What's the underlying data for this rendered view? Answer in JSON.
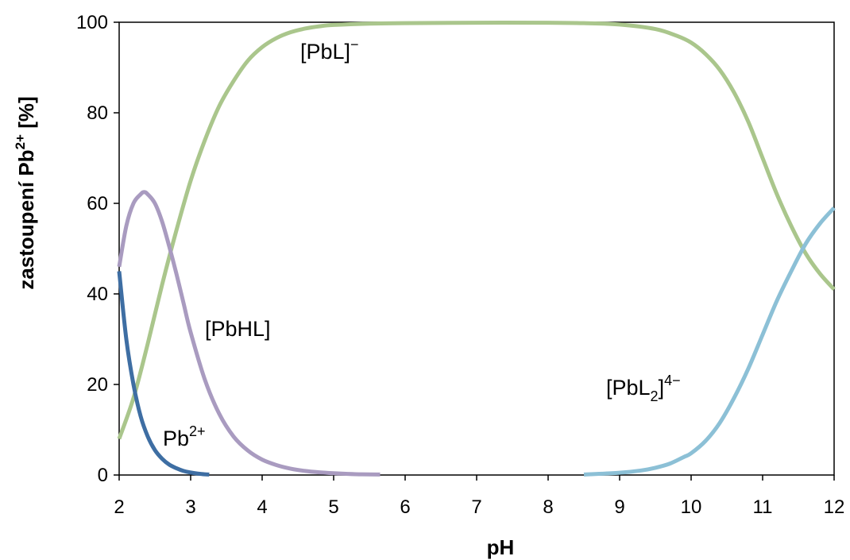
{
  "chart_data": {
    "type": "line",
    "title": "",
    "xlabel": "pH",
    "ylabel_main": "zastoupení Pb",
    "ylabel_sup": "2+",
    "ylabel_unit": " [%]",
    "xlim": [
      2,
      12
    ],
    "ylim": [
      0,
      100
    ],
    "xticks": [
      "2",
      "3",
      "4",
      "5",
      "6",
      "7",
      "8",
      "9",
      "10",
      "11",
      "12"
    ],
    "yticks": [
      "0",
      "20",
      "40",
      "60",
      "80",
      "100"
    ],
    "grid": false,
    "legend": "none",
    "series": [
      {
        "name": "Pb2+",
        "label_main": "Pb",
        "label_sup": "2+",
        "color": "#3e6ea3",
        "x": [
          2.0,
          2.1,
          2.2,
          2.3,
          2.4,
          2.5,
          2.6,
          2.7,
          2.8,
          2.9,
          3.0,
          3.1,
          3.2,
          3.26
        ],
        "y": [
          45,
          30,
          20,
          13,
          8.5,
          5.5,
          3.6,
          2.3,
          1.5,
          0.9,
          0.55,
          0.3,
          0.15,
          0.1
        ]
      },
      {
        "name": "[PbHL]",
        "label_main": "[PbHL]",
        "color": "#a99bc0",
        "x": [
          2.0,
          2.1,
          2.2,
          2.3,
          2.35,
          2.4,
          2.5,
          2.6,
          2.7,
          2.8,
          2.9,
          3.0,
          3.2,
          3.4,
          3.6,
          3.8,
          4.0,
          4.2,
          4.4,
          4.6,
          4.8,
          5.0,
          5.2,
          5.4,
          5.65
        ],
        "y": [
          46,
          55,
          60,
          62,
          62.5,
          62,
          60,
          56,
          50.5,
          44.5,
          38,
          31.5,
          21,
          13.5,
          8.5,
          5.4,
          3.4,
          2.2,
          1.4,
          0.9,
          0.6,
          0.4,
          0.25,
          0.15,
          0.1
        ]
      },
      {
        "name": "[PbL]−",
        "label_main": "[PbL]",
        "label_sup": "−",
        "color": "#aac68c",
        "x": [
          2.0,
          2.2,
          2.4,
          2.6,
          2.8,
          3.0,
          3.2,
          3.4,
          3.6,
          3.8,
          4.0,
          4.2,
          4.4,
          4.6,
          4.8,
          5.0,
          5.5,
          6.0,
          7.0,
          8.0,
          8.5,
          9.0,
          9.5,
          9.8,
          10.0,
          10.2,
          10.4,
          10.6,
          10.8,
          11.0,
          11.2,
          11.4,
          11.6,
          11.8,
          12.0
        ],
        "y": [
          8,
          17,
          29,
          42,
          54,
          65,
          74,
          81.5,
          87,
          91.5,
          94.5,
          96.5,
          97.8,
          98.6,
          99.1,
          99.4,
          99.7,
          99.8,
          99.9,
          99.9,
          99.8,
          99.5,
          98.5,
          97,
          95.5,
          93,
          89.5,
          84.5,
          78,
          70,
          62,
          55,
          49,
          44.5,
          41
        ]
      },
      {
        "name": "[PbL2]4−",
        "label_main": "[PbL",
        "label_sub": "2",
        "label_close": "]",
        "label_sup": "4−",
        "color": "#8cc0d6",
        "x": [
          8.5,
          9.0,
          9.3,
          9.5,
          9.7,
          9.9,
          10.0,
          10.2,
          10.4,
          10.6,
          10.8,
          11.0,
          11.2,
          11.4,
          11.6,
          11.8,
          12.0
        ],
        "y": [
          0.1,
          0.5,
          1.0,
          1.6,
          2.5,
          4.0,
          4.8,
          7.5,
          11.5,
          17,
          23.5,
          31,
          38.5,
          45,
          51,
          55.5,
          59
        ]
      }
    ]
  }
}
